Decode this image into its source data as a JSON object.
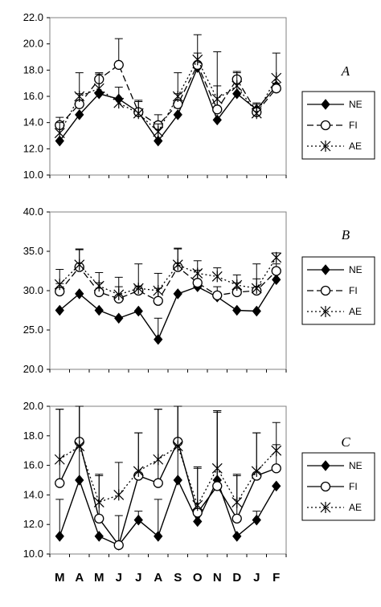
{
  "chart_data": [
    {
      "type": "line",
      "panel_label": "A",
      "categories": [
        "M",
        "A",
        "M",
        "J",
        "J",
        "A",
        "S",
        "O",
        "N",
        "D",
        "J",
        "F"
      ],
      "ylim": [
        10.0,
        22.0
      ],
      "yticks": [
        "10.0",
        "12.0",
        "14.0",
        "16.0",
        "18.0",
        "20.0",
        "22.0"
      ],
      "grid": false,
      "legend_position": "right",
      "series": [
        {
          "name": "NE",
          "marker": "diamond-filled",
          "line": "solid",
          "values": [
            12.6,
            14.6,
            16.2,
            15.8,
            14.8,
            12.6,
            14.6,
            18.2,
            14.2,
            16.2,
            15.0,
            16.8
          ],
          "errors": [
            0,
            0,
            0,
            0,
            0,
            0,
            0,
            0,
            0,
            0,
            0,
            0
          ]
        },
        {
          "name": "FI",
          "marker": "circle-open",
          "line": "dashed",
          "values": [
            13.8,
            15.4,
            17.3,
            18.4,
            14.8,
            13.8,
            15.4,
            18.4,
            15.0,
            17.3,
            14.8,
            16.6
          ],
          "errors": [
            0.6,
            0.8,
            0.4,
            2.0,
            0.8,
            0.8,
            0.8,
            0.9,
            4.4,
            0.6,
            0.6,
            0.4
          ]
        },
        {
          "name": "AE",
          "marker": "asterisk",
          "line": "dotted",
          "values": [
            13.2,
            16.0,
            16.6,
            15.5,
            14.7,
            13.3,
            16.0,
            18.8,
            15.8,
            16.8,
            14.7,
            17.4
          ],
          "errors": [
            0.8,
            1.8,
            1.2,
            1.2,
            1.0,
            0.6,
            1.8,
            1.9,
            1.0,
            1.0,
            0.8,
            1.9
          ]
        }
      ]
    },
    {
      "type": "line",
      "panel_label": "B",
      "categories": [
        "M",
        "A",
        "M",
        "J",
        "J",
        "A",
        "S",
        "O",
        "N",
        "D",
        "J",
        "F"
      ],
      "ylim": [
        20.0,
        40.0
      ],
      "yticks": [
        "20.0",
        "25.0",
        "30.0",
        "35.0",
        "40.0"
      ],
      "grid": false,
      "legend_position": "right",
      "series": [
        {
          "name": "NE",
          "marker": "diamond-filled",
          "line": "solid",
          "values": [
            27.5,
            29.6,
            27.5,
            26.5,
            27.4,
            23.8,
            29.6,
            30.5,
            29.2,
            27.5,
            27.4,
            31.4
          ],
          "errors": [
            0,
            0,
            0,
            0,
            0,
            2.7,
            0,
            0,
            0,
            0,
            0,
            0
          ]
        },
        {
          "name": "FI",
          "marker": "circle-open",
          "line": "dashed",
          "values": [
            29.9,
            33.0,
            29.8,
            29.0,
            30.0,
            28.7,
            33.0,
            31.0,
            29.4,
            29.8,
            30.0,
            32.5
          ],
          "errors": [
            1.0,
            2.2,
            1.2,
            1.5,
            0.6,
            1.6,
            2.3,
            1.6,
            1.1,
            1.2,
            1.5,
            0.9
          ]
        },
        {
          "name": "AE",
          "marker": "asterisk",
          "line": "dotted",
          "values": [
            30.8,
            33.3,
            30.6,
            29.5,
            30.3,
            30.0,
            33.3,
            32.2,
            31.8,
            30.7,
            30.3,
            34.2
          ],
          "errors": [
            1.9,
            2.0,
            1.7,
            2.2,
            3.1,
            2.2,
            2.1,
            1.6,
            1.1,
            1.3,
            3.1,
            0.6
          ]
        }
      ]
    },
    {
      "type": "line",
      "panel_label": "C",
      "categories": [
        "M",
        "A",
        "M",
        "J",
        "J",
        "A",
        "S",
        "O",
        "N",
        "D",
        "J",
        "F"
      ],
      "ylim": [
        10.0,
        20.0
      ],
      "yticks": [
        "10.0",
        "12.0",
        "14.0",
        "16.0",
        "18.0",
        "20.0"
      ],
      "grid": false,
      "legend_position": "right",
      "series": [
        {
          "name": "NE",
          "marker": "diamond-filled",
          "line": "solid",
          "values": [
            11.2,
            15.0,
            11.2,
            10.6,
            12.3,
            11.2,
            15.0,
            12.2,
            15.0,
            11.2,
            12.3,
            14.6
          ],
          "errors": [
            2.5,
            5.0,
            0,
            0,
            0.6,
            2.5,
            5.0,
            0,
            4.6,
            0,
            0.6,
            0
          ]
        },
        {
          "name": "FI",
          "marker": "circle-open",
          "line": "solid",
          "values": [
            14.8,
            17.6,
            12.4,
            10.6,
            15.3,
            14.8,
            17.6,
            12.8,
            14.6,
            12.4,
            15.3,
            15.8
          ],
          "errors": [
            5.0,
            2.4,
            3.0,
            2.0,
            2.9,
            5.0,
            2.4,
            3.0,
            5.1,
            3.0,
            2.9,
            1.6
          ]
        },
        {
          "name": "AE",
          "marker": "asterisk",
          "line": "dotted",
          "values": [
            16.4,
            17.3,
            13.5,
            14.0,
            15.6,
            16.4,
            17.3,
            13.3,
            15.8,
            13.5,
            15.6,
            17.0
          ],
          "errors": [
            3.4,
            2.7,
            1.8,
            2.2,
            2.6,
            3.4,
            2.7,
            2.6,
            3.9,
            1.8,
            2.6,
            1.9
          ]
        }
      ]
    }
  ]
}
